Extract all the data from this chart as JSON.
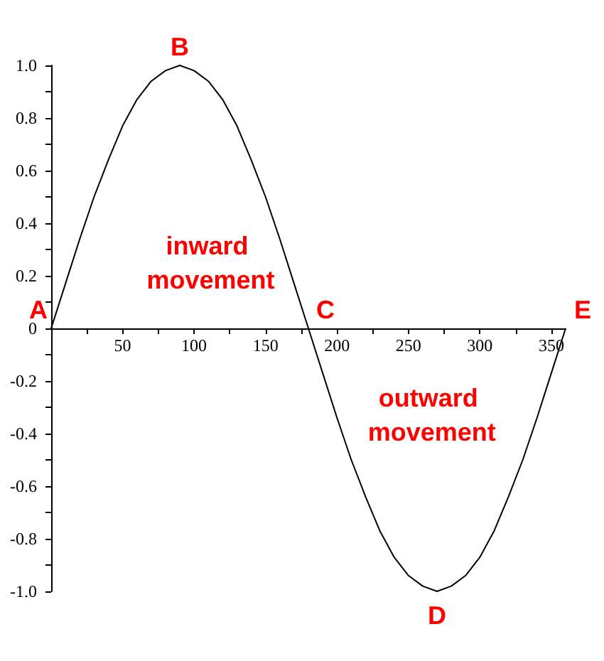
{
  "chart_data": {
    "type": "line",
    "x": [
      0,
      10,
      20,
      30,
      40,
      50,
      60,
      70,
      80,
      90,
      100,
      110,
      120,
      130,
      140,
      150,
      160,
      170,
      180,
      190,
      200,
      210,
      220,
      230,
      240,
      250,
      260,
      270,
      280,
      290,
      300,
      310,
      320,
      330,
      340,
      350,
      360
    ],
    "series": [
      {
        "color": "#000000",
        "values": [
          0,
          0.17,
          0.34,
          0.5,
          0.64,
          0.77,
          0.87,
          0.94,
          0.98,
          1,
          0.98,
          0.94,
          0.87,
          0.77,
          0.64,
          0.5,
          0.34,
          0.17,
          0,
          -0.17,
          -0.34,
          -0.5,
          -0.64,
          -0.77,
          -0.87,
          -0.94,
          -0.98,
          -1,
          -0.98,
          -0.94,
          -0.87,
          -0.77,
          -0.64,
          -0.5,
          -0.34,
          -0.17,
          0
        ]
      }
    ],
    "xlim": [
      0,
      360
    ],
    "xticks": [
      {
        "value": 25,
        "label": null
      },
      50,
      {
        "value": 75,
        "label": null
      },
      100,
      {
        "value": 125,
        "label": null
      },
      150,
      {
        "value": 175,
        "label": null
      },
      200,
      {
        "value": 225,
        "label": null
      },
      250,
      {
        "value": 275,
        "label": null
      },
      300,
      {
        "value": 325,
        "label": null
      },
      350
    ],
    "ylim": [
      -1,
      1
    ],
    "yticks": [
      {
        "value": -1,
        "label": "-1.0"
      },
      {
        "value": -0.9,
        "label": null
      },
      -0.8,
      {
        "value": -0.7,
        "label": null
      },
      -0.6,
      {
        "value": -0.5,
        "label": null
      },
      -0.4,
      {
        "value": -0.3,
        "label": null
      },
      -0.2,
      {
        "value": -0.1,
        "label": null
      },
      0,
      {
        "value": 0.1,
        "label": null
      },
      0.2,
      {
        "value": 0.3,
        "label": null
      },
      0.4,
      {
        "value": 0.5,
        "label": null
      },
      0.6,
      {
        "value": 0.7,
        "label": null
      },
      0.8,
      {
        "value": 0.9,
        "label": null
      },
      {
        "value": 1,
        "label": "1.0"
      }
    ],
    "annotations": [
      {
        "text": "A",
        "x": 0,
        "y": 0
      },
      {
        "text": "B",
        "x": 90,
        "y": 1
      },
      {
        "text": "C",
        "x": 180,
        "y": 0
      },
      {
        "text": "D",
        "x": 270,
        "y": -1
      },
      {
        "text": "E",
        "x": 360,
        "y": 0
      },
      "inward movement",
      "outward movement"
    ],
    "grid": false,
    "marker": "none",
    "line_style": "solid"
  }
}
